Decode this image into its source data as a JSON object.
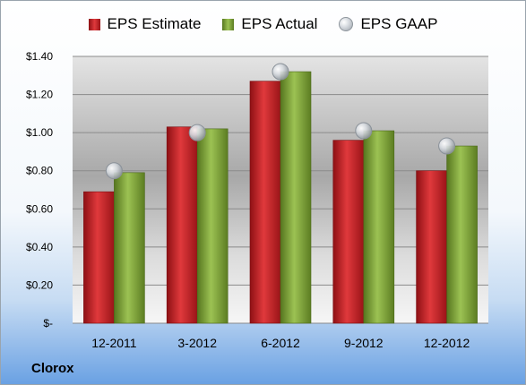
{
  "chart_data": {
    "type": "bar",
    "categories": [
      "12-2011",
      "3-2012",
      "6-2012",
      "9-2012",
      "12-2012"
    ],
    "series": [
      {
        "name": "EPS Estimate",
        "kind": "bar",
        "color": "#cc1f24",
        "values": [
          0.69,
          1.03,
          1.27,
          0.96,
          0.8
        ]
      },
      {
        "name": "EPS Actual",
        "kind": "bar",
        "color": "#7ea33c",
        "values": [
          0.79,
          1.02,
          1.32,
          1.01,
          0.93
        ]
      },
      {
        "name": "EPS GAAP",
        "kind": "scatter",
        "color": "#b8bec5",
        "values": [
          0.8,
          1.0,
          1.32,
          1.01,
          0.93
        ]
      }
    ],
    "ylim": [
      0,
      1.4
    ],
    "yticks": [
      0,
      0.2,
      0.4,
      0.6,
      0.8,
      1.0,
      1.2,
      1.4
    ],
    "ytick_labels": [
      "$-",
      "$0.20",
      "$0.40",
      "$0.60",
      "$0.80",
      "$1.00",
      "$1.20",
      "$1.40"
    ],
    "grid": true,
    "legend_position": "top"
  },
  "company_label": "Clorox"
}
